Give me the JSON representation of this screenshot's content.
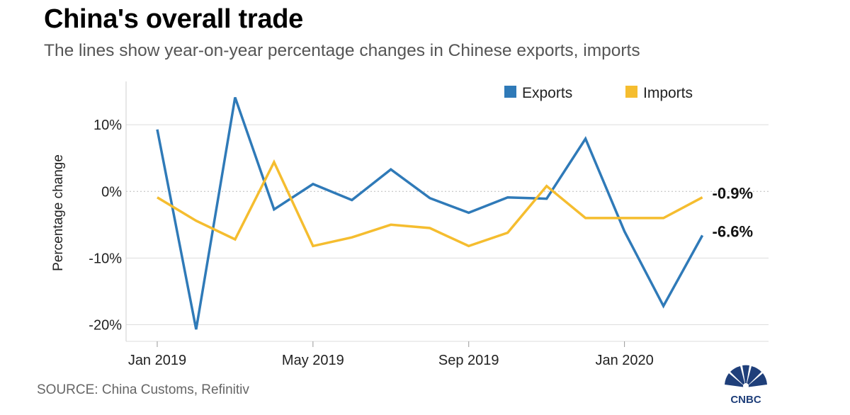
{
  "header": {
    "title": "China's overall trade",
    "subtitle": "The lines show year-on-year percentage changes in Chinese exports, imports"
  },
  "footer": {
    "source": "SOURCE: China Customs, Refinitiv",
    "logo_text": "CNBC"
  },
  "colors": {
    "exports": "#2f7ab8",
    "imports": "#f5bd2f",
    "grid": "#dddddd",
    "zero_line": "#bbbbbb"
  },
  "chart_data": {
    "type": "line",
    "title": "China's overall trade",
    "subtitle": "The lines show year-on-year percentage changes in Chinese exports, imports",
    "xlabel": "",
    "ylabel": "Percentage change",
    "x": [
      "Jan 2019",
      "Feb 2019",
      "Mar 2019",
      "Apr 2019",
      "May 2019",
      "Jun 2019",
      "Jul 2019",
      "Aug 2019",
      "Sep 2019",
      "Oct 2019",
      "Nov 2019",
      "Dec 2019",
      "Jan 2020",
      "Feb 2020",
      "Mar 2020"
    ],
    "x_ticks": [
      {
        "index": 0,
        "label": "Jan 2019"
      },
      {
        "index": 4,
        "label": "May 2019"
      },
      {
        "index": 8,
        "label": "Sep 2019"
      },
      {
        "index": 12,
        "label": "Jan 2020"
      }
    ],
    "y_ticks": [
      {
        "value": 10,
        "label": "10%"
      },
      {
        "value": 0,
        "label": "0%"
      },
      {
        "value": -10,
        "label": "-10%"
      },
      {
        "value": -20,
        "label": "-20%"
      }
    ],
    "ylim": [
      -22.5,
      16.5
    ],
    "xlim": [
      -0.8,
      15.7
    ],
    "series": [
      {
        "name": "Exports",
        "key": "exports",
        "values": [
          9.3,
          -20.7,
          14.1,
          -2.7,
          1.1,
          -1.3,
          3.3,
          -1.0,
          -3.2,
          -0.9,
          -1.1,
          7.9,
          -6.0,
          -17.2,
          -6.6
        ]
      },
      {
        "name": "Imports",
        "key": "imports",
        "values": [
          -0.9,
          -4.4,
          -7.2,
          4.4,
          -8.2,
          -6.9,
          -5.0,
          -5.5,
          -8.2,
          -6.2,
          0.8,
          -4.0,
          -4.0,
          -4.0,
          -0.9
        ]
      }
    ],
    "end_labels": [
      {
        "series": "Imports",
        "value": -0.9,
        "label": "-0.9%"
      },
      {
        "series": "Exports",
        "value": -6.6,
        "label": "-6.6%"
      }
    ],
    "legend": {
      "placement": "top-right",
      "entries": [
        "Exports",
        "Imports"
      ]
    },
    "grid": true
  }
}
